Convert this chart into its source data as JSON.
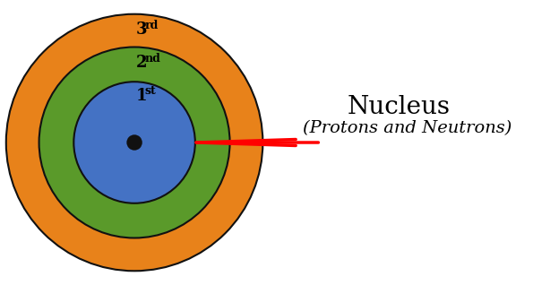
{
  "bg_color": "#ffffff",
  "color_3rd": "#E8821A",
  "color_2nd": "#5A9A2A",
  "color_1st": "#4472C4",
  "color_nucleus_dot": "#111111",
  "edge_color": "#111111",
  "linewidth": 1.5,
  "nucleus_label": "Nucleus",
  "nucleus_sublabel": "(Protons and Neutrons)",
  "nucleus_fontsize": 20,
  "sublabel_fontsize": 14,
  "label_fontsize": 13,
  "shell_label_color": "#000000"
}
